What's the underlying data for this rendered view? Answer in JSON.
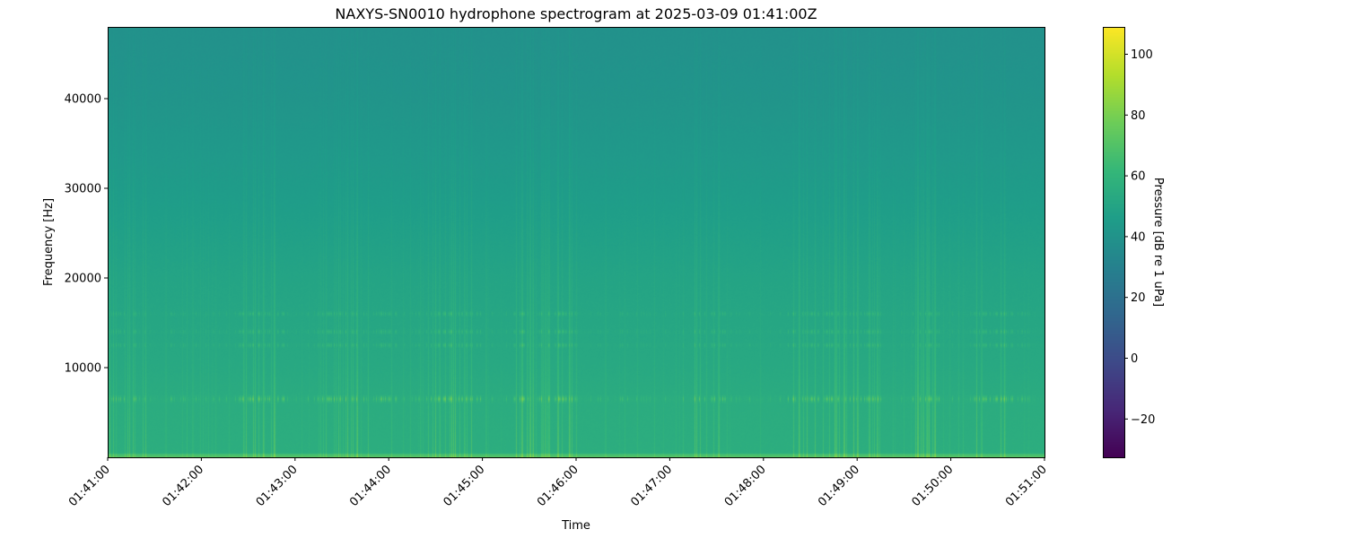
{
  "chart_data": {
    "type": "heatmap",
    "title": "NAXYS-SN0010 hydrophone spectrogram at 2025-03-09 01:41:00Z",
    "xlabel": "Time",
    "ylabel": "Frequency [Hz]",
    "colorbar_label": "Pressure [dB re 1 uPa]",
    "colormap": "viridis",
    "xlim": [
      "01:41:00",
      "01:51:00"
    ],
    "ylim": [
      0,
      48000
    ],
    "clim": [
      -32.6,
      109
    ],
    "x_ticks": [
      "01:41:00",
      "01:42:00",
      "01:43:00",
      "01:44:00",
      "01:45:00",
      "01:46:00",
      "01:47:00",
      "01:48:00",
      "01:49:00",
      "01:50:00",
      "01:51:00"
    ],
    "y_ticks": [
      10000,
      20000,
      30000,
      40000
    ],
    "colorbar_ticks": [
      -20,
      0,
      20,
      40,
      60,
      80,
      100
    ],
    "grid": false,
    "background_profile_db": [
      {
        "freq_hz": 0,
        "db": 66
      },
      {
        "freq_hz": 500,
        "db": 56
      },
      {
        "freq_hz": 6000,
        "db": 55
      },
      {
        "freq_hz": 10000,
        "db": 53
      },
      {
        "freq_hz": 20000,
        "db": 50
      },
      {
        "freq_hz": 30000,
        "db": 45
      },
      {
        "freq_hz": 40000,
        "db": 41
      },
      {
        "freq_hz": 48000,
        "db": 39
      }
    ],
    "tonal_bands_hz": [
      6500,
      12500,
      14000,
      16000
    ],
    "active_periods": [
      [
        "01:41:05",
        "01:41:20"
      ],
      [
        "01:42:30",
        "01:42:50"
      ],
      [
        "01:43:15",
        "01:44:00"
      ],
      [
        "01:44:30",
        "01:44:55"
      ],
      [
        "01:45:25",
        "01:45:55"
      ],
      [
        "01:47:20",
        "01:47:30"
      ],
      [
        "01:48:20",
        "01:49:10"
      ],
      [
        "01:49:40",
        "01:49:50"
      ],
      [
        "01:50:20",
        "01:50:35"
      ]
    ]
  }
}
